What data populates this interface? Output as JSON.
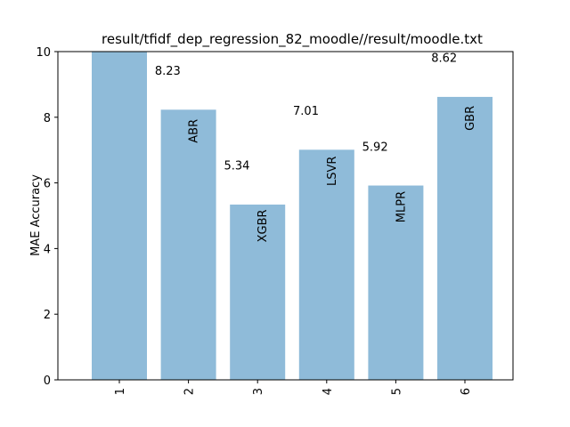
{
  "chart_data": {
    "type": "bar",
    "title": "result/tfidf_dep_regression_82_moodle//result/moodle.txt",
    "y_label": "MAE Accuracy",
    "categories": [
      "1",
      "2",
      "3",
      "4",
      "5",
      "6"
    ],
    "values": [
      11,
      8.23,
      5.34,
      7.01,
      5.92,
      8.62
    ],
    "bar_labels": [
      null,
      "ABR",
      "XGBR",
      "LSVR",
      "MLPR",
      "GBR"
    ],
    "color": "#8fbbd9",
    "ylim": [
      0,
      10
    ],
    "yticks": [
      0,
      2,
      4,
      6,
      8,
      10
    ]
  }
}
